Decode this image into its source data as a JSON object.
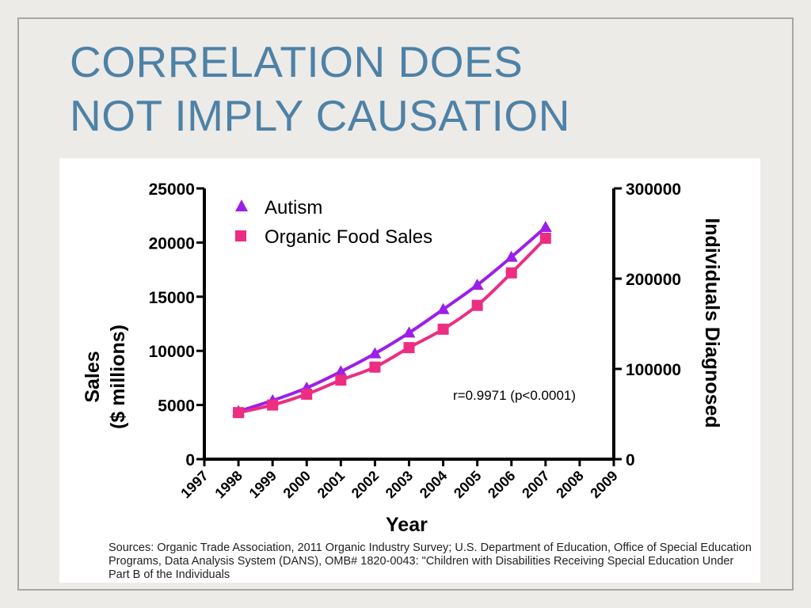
{
  "slide": {
    "title_line1": "CORRELATION DOES",
    "title_line2": "NOT IMPLY CAUSATION",
    "sources": "Sources: Organic Trade Association,  2011 Organic Industry Survey; U.S. Department of Education, Office of Special Education Programs, Data Analysis System (DANS), OMB# 1820-0043: \"Children with Disabilities Receiving Special Education Under Part B of the Individuals"
  },
  "chart_data": {
    "type": "line",
    "title": "",
    "xlabel": "Year",
    "ylabel_left_line1": "Sales",
    "ylabel_left_line2": "($ millions)",
    "ylabel_right": "Individuals Diagnosed",
    "x_ticks": [
      "1997",
      "1998",
      "1999",
      "2000",
      "2001",
      "2002",
      "2003",
      "2004",
      "2005",
      "2006",
      "2007",
      "2008",
      "2009"
    ],
    "xlim": [
      1997,
      2009
    ],
    "y_left_ticks": [
      "0",
      "5000",
      "10000",
      "15000",
      "20000",
      "25000"
    ],
    "y_left_lim": [
      0,
      25000
    ],
    "y_right_ticks": [
      "0",
      "100000",
      "200000",
      "300000"
    ],
    "y_right_lim": [
      0,
      300000
    ],
    "grid": false,
    "legend_position": "top-left",
    "annotation": "r=0.9971 (p<0.0001)",
    "series": [
      {
        "name": "Autism",
        "axis": "right",
        "marker": "triangle",
        "color": "#9b1fe8",
        "x": [
          1998,
          1999,
          2000,
          2001,
          2002,
          2003,
          2004,
          2005,
          2006,
          2007
        ],
        "values": [
          53000,
          65000,
          79000,
          97000,
          117000,
          140000,
          166000,
          193000,
          224000,
          257000
        ]
      },
      {
        "name": "Organic Food Sales",
        "axis": "left",
        "marker": "square",
        "color": "#ec2d82",
        "x": [
          1998,
          1999,
          2000,
          2001,
          2002,
          2003,
          2004,
          2005,
          2006,
          2007
        ],
        "values": [
          4300,
          5000,
          6000,
          7300,
          8500,
          10300,
          12000,
          14200,
          17200,
          20400
        ]
      }
    ]
  }
}
